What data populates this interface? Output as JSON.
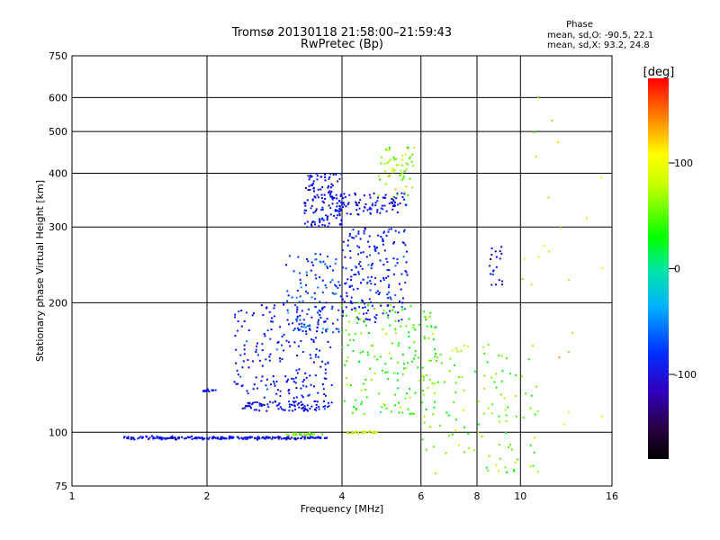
{
  "chart_data": {
    "type": "scatter",
    "title": "Tromsø 20130118 21:58:00–21:59:43",
    "subtitle": "RwPretec (Bp)",
    "xlabel": "Frequency [MHz]",
    "ylabel": "Stationary phase Virtual Height [km]",
    "x_scale": "log",
    "y_scale": "log",
    "xlim": [
      1,
      16
    ],
    "ylim": [
      75,
      750
    ],
    "xticks": [
      1,
      2,
      4,
      6,
      8,
      10,
      16
    ],
    "yticks": [
      75,
      100,
      200,
      300,
      400,
      500,
      600,
      750
    ],
    "grid": true,
    "stats": {
      "title": "Phase",
      "o_line": "mean, sd,O: -90.5, 22.1",
      "x_line": "mean, sd,X:  93.2, 24.8"
    },
    "colorbar": {
      "label": "[deg]",
      "ticks": [
        "100",
        "0",
        "-100"
      ],
      "range": [
        -180,
        180
      ]
    },
    "traces": [
      {
        "name": "",
        "x_range": [
          1.3,
          3.7
        ],
        "y": 97,
        "phase": -110,
        "count": 220
      },
      {
        "name": "",
        "x_range": [
          3.0,
          3.7
        ],
        "y": 99,
        "phase": 70,
        "count": 25
      },
      {
        "name": "",
        "x_range": [
          4.1,
          4.8
        ],
        "y": 100,
        "phase": 110,
        "count": 30
      },
      {
        "name": "",
        "x_range": [
          1.95,
          2.1
        ],
        "y": 125,
        "phase": -110,
        "count": 14
      },
      {
        "name": "",
        "x_range": [
          2.4,
          3.8
        ],
        "y_range": [
          112,
          118
        ],
        "phase": -110,
        "count": 90
      },
      {
        "name": "",
        "x_range": [
          2.3,
          3.8
        ],
        "y_range": [
          120,
          200
        ],
        "phase": -100,
        "count": 200
      },
      {
        "name": "",
        "x_range": [
          3.0,
          4.0
        ],
        "y_range": [
          170,
          260
        ],
        "phase": -80,
        "count": 110
      },
      {
        "name": "",
        "x_range": [
          3.3,
          4.0
        ],
        "y_range": [
          300,
          400
        ],
        "phase": -110,
        "count": 140
      },
      {
        "name": "",
        "x_range": [
          4.0,
          5.6
        ],
        "y_range": [
          180,
          300
        ],
        "phase": -95,
        "count": 190
      },
      {
        "name": "",
        "x_range": [
          4.0,
          5.6
        ],
        "y_range": [
          320,
          360
        ],
        "phase": -110,
        "count": 80
      },
      {
        "name": "",
        "x_range": [
          4.8,
          5.8
        ],
        "y_range": [
          350,
          460
        ],
        "phase": 80,
        "count": 60
      },
      {
        "name": "",
        "x_range": [
          4.0,
          6.5
        ],
        "y_range": [
          110,
          200
        ],
        "phase": 60,
        "count": 170
      },
      {
        "name": "",
        "x_range": [
          6.0,
          11.0
        ],
        "y_range": [
          80,
          160
        ],
        "phase": 70,
        "count": 120
      },
      {
        "name": "",
        "x_range": [
          8.5,
          9.2
        ],
        "y_range": [
          220,
          270
        ],
        "phase": -110,
        "count": 20
      },
      {
        "name": "",
        "x_range": [
          10.0,
          15.5
        ],
        "y_range": [
          100,
          620
        ],
        "phase": 100,
        "count": 25
      }
    ]
  }
}
